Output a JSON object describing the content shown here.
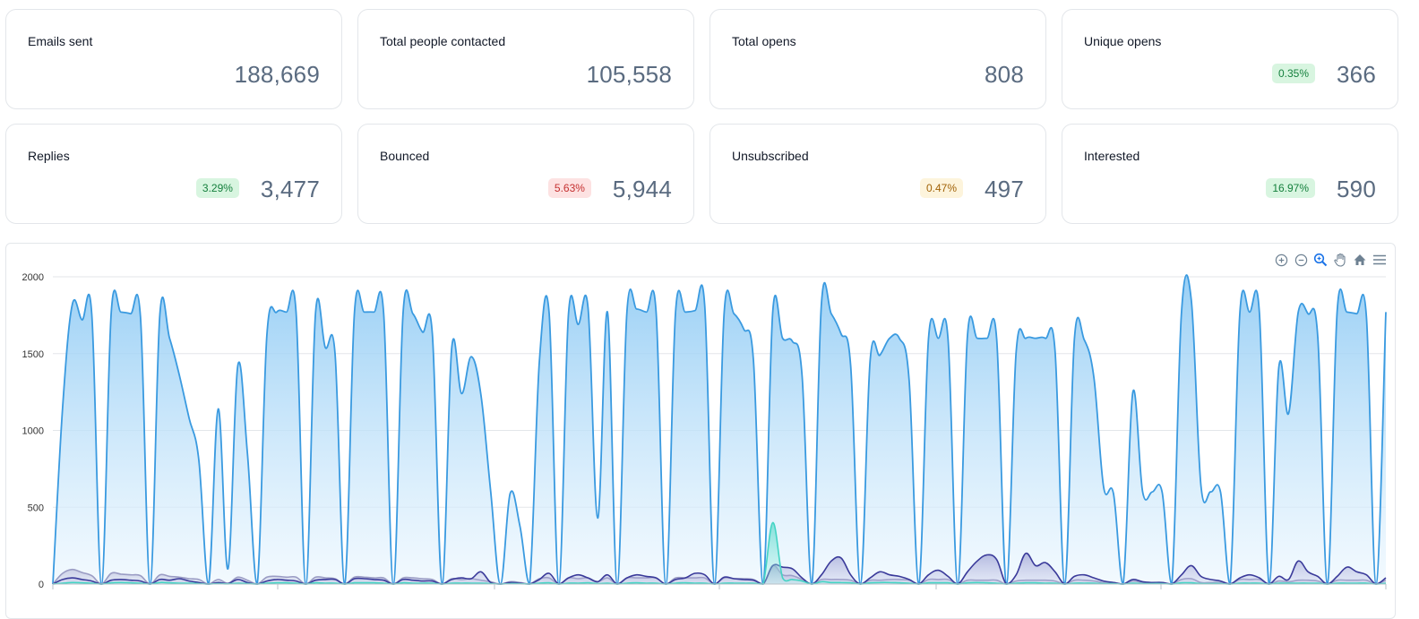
{
  "stats": [
    {
      "label": "Emails sent",
      "value": "188,669",
      "badge": null,
      "badge_color": null
    },
    {
      "label": "Total people contacted",
      "value": "105,558",
      "badge": null,
      "badge_color": null
    },
    {
      "label": "Total opens",
      "value": "808",
      "badge": null,
      "badge_color": null
    },
    {
      "label": "Unique opens",
      "value": "366",
      "badge": "0.35%",
      "badge_color": "green"
    },
    {
      "label": "Replies",
      "value": "3,477",
      "badge": "3.29%",
      "badge_color": "green"
    },
    {
      "label": "Bounced",
      "value": "5,944",
      "badge": "5.63%",
      "badge_color": "red"
    },
    {
      "label": "Unsubscribed",
      "value": "497",
      "badge": "0.47%",
      "badge_color": "yellow"
    },
    {
      "label": "Interested",
      "value": "590",
      "badge": "16.97%",
      "badge_color": "green"
    }
  ],
  "toolbar": {
    "icons": [
      "zoom-in-icon",
      "zoom-out-icon",
      "selection-zoom-icon",
      "pan-hand-icon",
      "home-icon",
      "menu-icon"
    ],
    "active_color": "#1a73e8",
    "icon_color": "#6e8192"
  },
  "chart_data": {
    "type": "area",
    "ylim": [
      0,
      2000
    ],
    "yticks": [
      0,
      500,
      1000,
      1500,
      2000
    ],
    "grid": true,
    "colors": {
      "sent": "#3a9ae0",
      "sent_fill_top": "#8ecaf4",
      "replies": "#9a9cc4",
      "opens": "#3a3a9a",
      "interested": "#44d4c4"
    },
    "series": [
      {
        "key": "sent",
        "values": [
          0,
          1150,
          1820,
          1720,
          1760,
          0,
          1770,
          1770,
          1760,
          1740,
          0,
          1760,
          1600,
          1360,
          1080,
          810,
          0,
          1140,
          100,
          1420,
          850,
          0,
          1620,
          1770,
          1770,
          1770,
          0,
          1770,
          1540,
          1500,
          0,
          1770,
          1770,
          1770,
          1760,
          0,
          1770,
          1760,
          1640,
          1630,
          0,
          1540,
          1240,
          1480,
          1230,
          600,
          0,
          590,
          380,
          0,
          1450,
          1770,
          0,
          1760,
          1690,
          1800,
          430,
          1770,
          0,
          1770,
          1790,
          1770,
          1770,
          0,
          1770,
          1770,
          1780,
          1810,
          0,
          1770,
          1760,
          1660,
          1460,
          0,
          1780,
          1600,
          1580,
          1360,
          0,
          1830,
          1760,
          1630,
          1420,
          0,
          1460,
          1490,
          1600,
          1600,
          1330,
          0,
          1600,
          1600,
          1600,
          0,
          1620,
          1600,
          1600,
          1600,
          0,
          1510,
          1600,
          1600,
          1600,
          1520,
          0,
          1600,
          1590,
          1340,
          630,
          590,
          0,
          1250,
          600,
          600,
          600,
          0,
          1770,
          1850,
          640,
          600,
          600,
          0,
          1770,
          1770,
          1770,
          0,
          1410,
          1110,
          1770,
          1760,
          1610,
          0,
          1780,
          1770,
          1760,
          1740,
          0,
          1770
        ]
      },
      {
        "key": "replies",
        "values": [
          0,
          70,
          95,
          75,
          55,
          0,
          70,
          65,
          60,
          55,
          0,
          60,
          50,
          45,
          35,
          30,
          0,
          30,
          5,
          45,
          25,
          0,
          45,
          50,
          45,
          45,
          0,
          45,
          40,
          35,
          0,
          45,
          45,
          40,
          40,
          0,
          40,
          40,
          35,
          30,
          0,
          35,
          30,
          35,
          25,
          15,
          0,
          15,
          10,
          0,
          35,
          40,
          0,
          40,
          35,
          40,
          15,
          40,
          0,
          40,
          40,
          40,
          40,
          0,
          40,
          40,
          40,
          40,
          0,
          40,
          35,
          35,
          30,
          0,
          120,
          60,
          55,
          30,
          0,
          30,
          30,
          30,
          25,
          0,
          25,
          25,
          30,
          30,
          25,
          0,
          30,
          30,
          30,
          0,
          25,
          25,
          25,
          25,
          0,
          20,
          25,
          25,
          25,
          20,
          0,
          25,
          25,
          20,
          10,
          10,
          0,
          20,
          10,
          10,
          10,
          0,
          30,
          35,
          10,
          10,
          10,
          0,
          30,
          30,
          30,
          0,
          20,
          15,
          25,
          25,
          20,
          0,
          25,
          25,
          25,
          25,
          0,
          25
        ]
      },
      {
        "key": "opens",
        "values": [
          0,
          30,
          40,
          30,
          20,
          0,
          25,
          30,
          25,
          20,
          0,
          30,
          25,
          35,
          20,
          10,
          0,
          10,
          3,
          30,
          10,
          0,
          20,
          30,
          25,
          20,
          0,
          25,
          30,
          30,
          0,
          35,
          35,
          30,
          25,
          0,
          30,
          25,
          20,
          20,
          0,
          30,
          40,
          35,
          80,
          10,
          0,
          10,
          5,
          0,
          30,
          70,
          0,
          40,
          60,
          40,
          15,
          60,
          0,
          40,
          60,
          50,
          40,
          0,
          30,
          40,
          70,
          60,
          0,
          45,
          35,
          30,
          25,
          0,
          120,
          110,
          100,
          40,
          0,
          60,
          150,
          170,
          60,
          0,
          40,
          80,
          60,
          50,
          30,
          0,
          60,
          90,
          50,
          0,
          80,
          150,
          190,
          160,
          0,
          60,
          200,
          120,
          140,
          80,
          0,
          50,
          60,
          40,
          20,
          10,
          0,
          30,
          15,
          10,
          10,
          0,
          60,
          120,
          50,
          30,
          20,
          0,
          40,
          60,
          40,
          0,
          50,
          30,
          150,
          80,
          50,
          0,
          50,
          110,
          80,
          60,
          0,
          40
        ]
      },
      {
        "key": "interested",
        "values": [
          0,
          5,
          10,
          8,
          5,
          0,
          8,
          10,
          8,
          6,
          0,
          10,
          8,
          6,
          5,
          3,
          0,
          3,
          1,
          6,
          3,
          0,
          6,
          8,
          8,
          6,
          0,
          8,
          6,
          6,
          0,
          8,
          8,
          8,
          6,
          0,
          8,
          6,
          6,
          6,
          0,
          6,
          6,
          6,
          5,
          3,
          0,
          3,
          2,
          0,
          6,
          8,
          0,
          6,
          6,
          8,
          3,
          6,
          0,
          6,
          8,
          6,
          6,
          0,
          6,
          8,
          6,
          6,
          0,
          6,
          6,
          5,
          5,
          0,
          400,
          40,
          30,
          20,
          0,
          15,
          10,
          10,
          8,
          0,
          8,
          10,
          10,
          8,
          6,
          0,
          8,
          8,
          8,
          0,
          8,
          10,
          8,
          6,
          0,
          6,
          8,
          8,
          6,
          6,
          0,
          6,
          6,
          6,
          3,
          3,
          0,
          6,
          3,
          3,
          3,
          0,
          8,
          8,
          3,
          3,
          3,
          0,
          6,
          6,
          6,
          0,
          6,
          5,
          6,
          6,
          5,
          0,
          6,
          6,
          6,
          6,
          0,
          6
        ]
      }
    ]
  }
}
